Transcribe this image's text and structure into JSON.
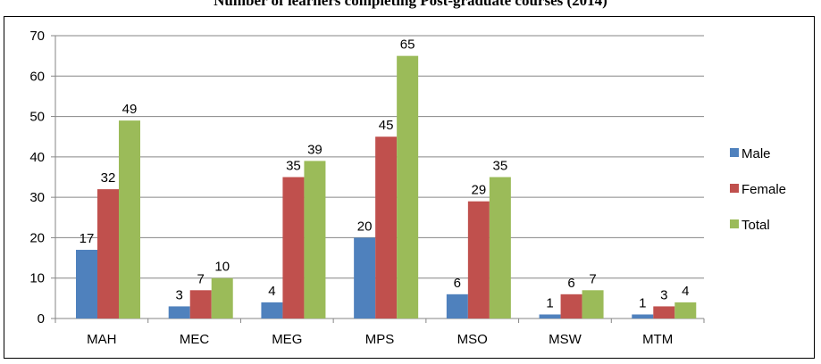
{
  "header": {
    "title": "Number of learners completing Post-graduate courses (2014)"
  },
  "chart_data": {
    "type": "bar",
    "title": "Number of learners completing Post-graduate courses (2014)",
    "categories": [
      "MAH",
      "MEC",
      "MEG",
      "MPS",
      "MSO",
      "MSW",
      "MTM"
    ],
    "series": [
      {
        "name": "Male",
        "values": [
          17,
          3,
          4,
          20,
          6,
          1,
          1
        ],
        "color": "#4F81BD"
      },
      {
        "name": "Female",
        "values": [
          32,
          7,
          35,
          45,
          29,
          6,
          3
        ],
        "color": "#C0504D"
      },
      {
        "name": "Total",
        "values": [
          49,
          10,
          39,
          65,
          35,
          7,
          4
        ],
        "color": "#9BBB59"
      }
    ],
    "ylim": [
      0,
      70
    ],
    "yticks": [
      0,
      10,
      20,
      30,
      40,
      50,
      60,
      70
    ],
    "grid": true,
    "legend": "right",
    "xlabel": "",
    "ylabel": ""
  }
}
